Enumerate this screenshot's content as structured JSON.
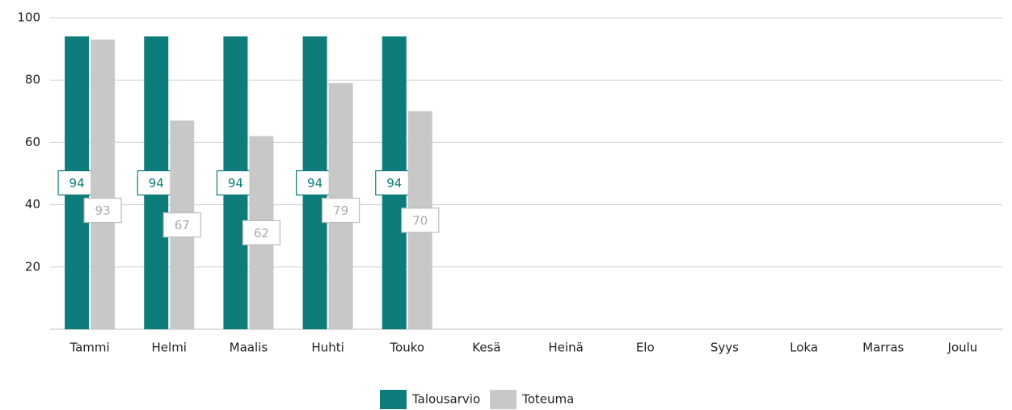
{
  "chart_data": {
    "type": "bar",
    "categories": [
      "Tammi",
      "Helmi",
      "Maalis",
      "Huhti",
      "Touko",
      "Kesä",
      "Heinä",
      "Elo",
      "Syys",
      "Loka",
      "Marras",
      "Joulu"
    ],
    "series": [
      {
        "name": "Talousarvio",
        "color": "#0e7c7b",
        "values": [
          94,
          94,
          94,
          94,
          94,
          null,
          null,
          null,
          null,
          null,
          null,
          null
        ]
      },
      {
        "name": "Toteuma",
        "color": "#c8c8c8",
        "values": [
          93,
          67,
          62,
          79,
          70,
          null,
          null,
          null,
          null,
          null,
          null,
          null
        ]
      }
    ],
    "ylim": [
      0,
      100
    ],
    "yticks": [
      20,
      40,
      60,
      80,
      100
    ],
    "grid": true,
    "legend": "bottom"
  }
}
